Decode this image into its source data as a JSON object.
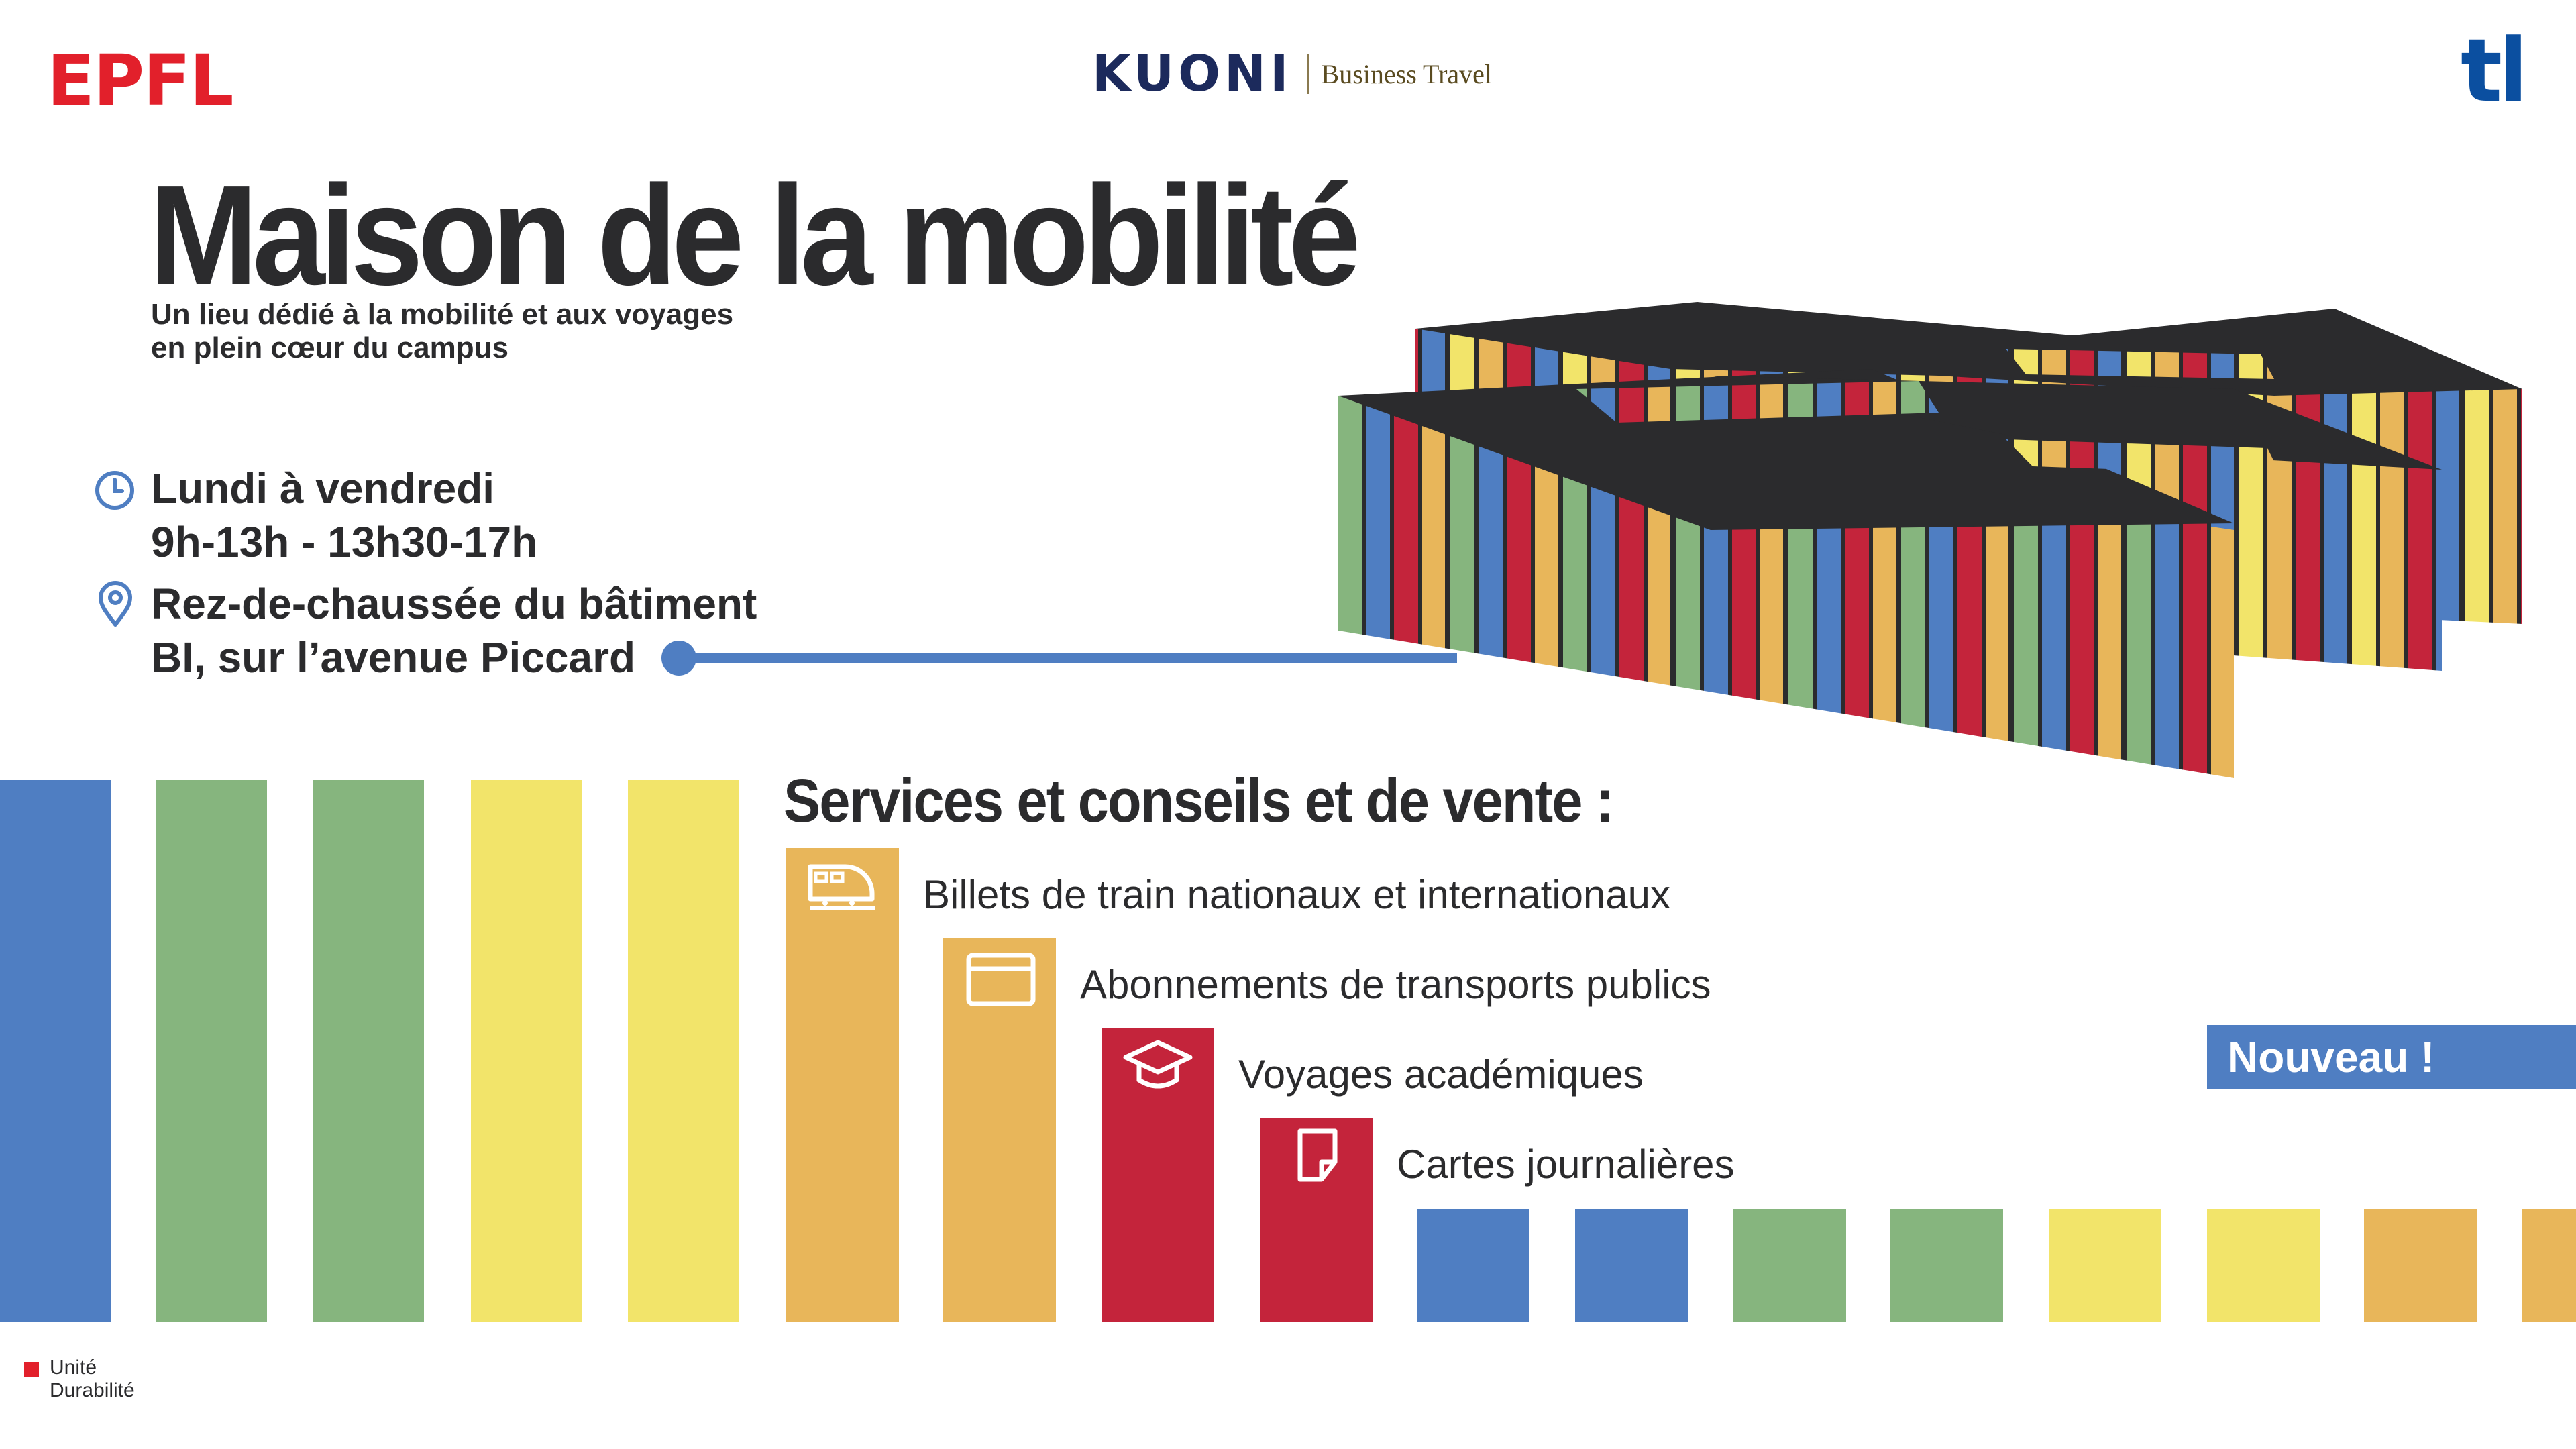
{
  "header": {
    "epfl_logo_text": "EPFL",
    "kuoni_logo_text": "KUONI",
    "kuoni_subtitle": "Business Travel",
    "tl_logo_text": "tl"
  },
  "title": "Maison de la mobilité",
  "subtitle": {
    "line1": "Un lieu dédié à la mobilité et aux voyages",
    "line2": "en plein cœur du campus"
  },
  "hours": {
    "icon": "clock-icon",
    "days": "Lundi à vendredi",
    "times": "9h-13h - 13h30-17h"
  },
  "location": {
    "icon": "location-pin-icon",
    "line1": "Rez-de-chaussée du bâtiment",
    "line2": "BI, sur l’avenue Piccard"
  },
  "services": {
    "title": "Services et conseils et de vente :",
    "items": [
      {
        "label": "Billets de train nationaux et internationaux",
        "icon": "train-icon",
        "color": "#e8b65a"
      },
      {
        "label": "Abonnements de transports publics",
        "icon": "card-icon",
        "color": "#e8b65a"
      },
      {
        "label": "Voyages académiques",
        "icon": "graduation-cap-icon",
        "color": "#c4243b"
      },
      {
        "label": "Cartes journalières",
        "icon": "document-icon",
        "color": "#c4243b"
      }
    ]
  },
  "badge": "Nouveau !",
  "footer": {
    "line1": "Unité",
    "line2": "Durabilité"
  },
  "colors": {
    "blue": "#4f7ec2",
    "green": "#86b57e",
    "yellow": "#f2e46a",
    "orange": "#e8b65a",
    "red": "#c4243b",
    "dark": "#2b2b2d",
    "epfl_red": "#e2202b"
  }
}
